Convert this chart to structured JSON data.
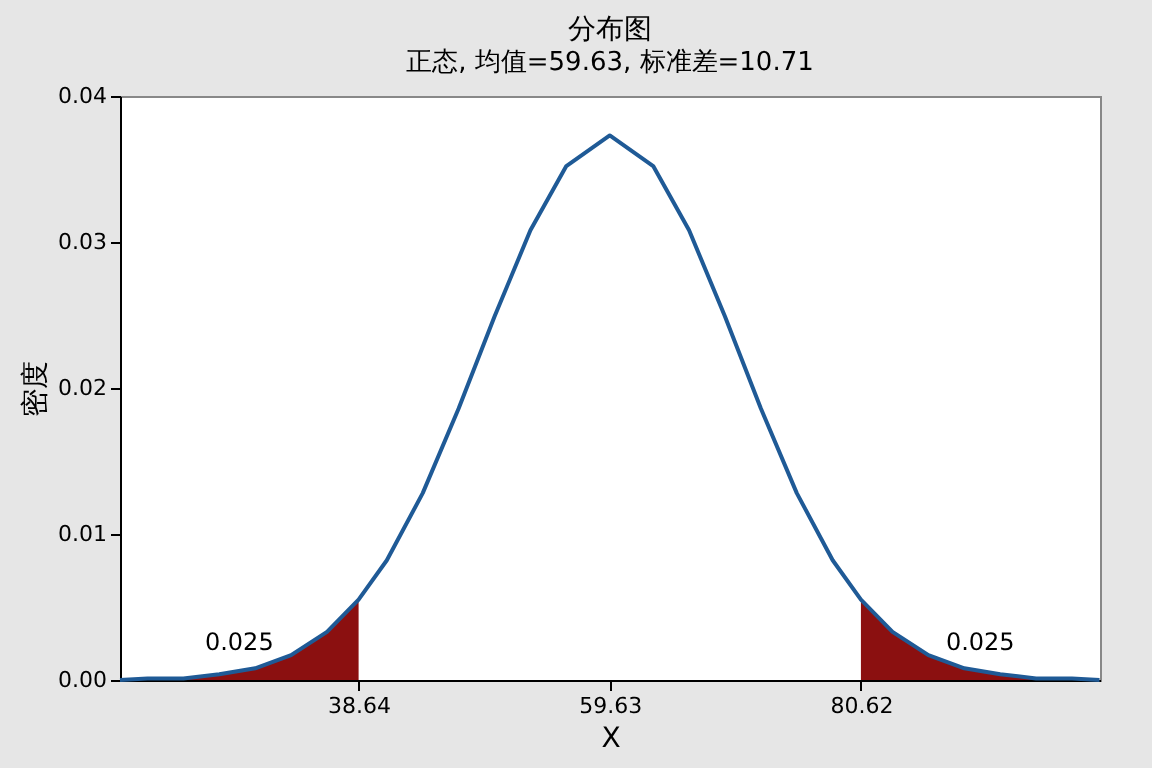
{
  "chart_data": {
    "type": "line",
    "title": "分布图",
    "subtitle": "正态, 均值=59.63, 标准差=10.71",
    "xlabel": "X",
    "ylabel": "密度",
    "xlim": [
      18.7,
      100.6
    ],
    "xticks": [
      38.64,
      59.63,
      80.62
    ],
    "ylim": [
      0,
      0.04
    ],
    "yticks": [
      {
        "value": 0,
        "label": "0.00"
      },
      {
        "value": 0.01,
        "label": "0.01"
      },
      {
        "value": 0.02,
        "label": "0.02"
      },
      {
        "value": 0.03,
        "label": "0.03"
      },
      {
        "value": 0.04,
        "label": "0.04"
      }
    ],
    "series": [
      {
        "type": "area",
        "color": "#8b1010",
        "x": [
          18.7,
          21,
          24,
          27,
          30,
          33,
          36,
          38.64
        ],
        "values": [
          0,
          0.0001,
          0.0001,
          0.0004,
          0.0008,
          0.0017,
          0.0033,
          0.0055
        ]
      },
      {
        "type": "area",
        "color": "#8b1010",
        "x": [
          80.62,
          83.26,
          86.26,
          89.26,
          92.26,
          95.26,
          98.26,
          100.56
        ],
        "values": [
          0.0055,
          0.0033,
          0.0017,
          0.0008,
          0.0004,
          0.0001,
          0.0001,
          0
        ]
      },
      {
        "color": "#1f5a96",
        "x": [
          18.7,
          21,
          24,
          27,
          30,
          33,
          36,
          38.64,
          41,
          44,
          47,
          50,
          53,
          56,
          59.63,
          63.26,
          66.26,
          69.26,
          72.26,
          75.26,
          78.26,
          80.62,
          83.26,
          86.26,
          89.26,
          92.26,
          95.26,
          98.26,
          100.56
        ],
        "values": [
          0,
          0.0001,
          0.0001,
          0.0004,
          0.0008,
          0.0017,
          0.0033,
          0.0055,
          0.0082,
          0.0128,
          0.0186,
          0.0249,
          0.0308,
          0.0352,
          0.0373,
          0.0352,
          0.0308,
          0.0249,
          0.0186,
          0.0128,
          0.0082,
          0.0055,
          0.0033,
          0.0017,
          0.0008,
          0.0004,
          0.0001,
          0.0001,
          0
        ]
      }
    ],
    "annotations": [
      "0.025",
      "0.025"
    ]
  }
}
